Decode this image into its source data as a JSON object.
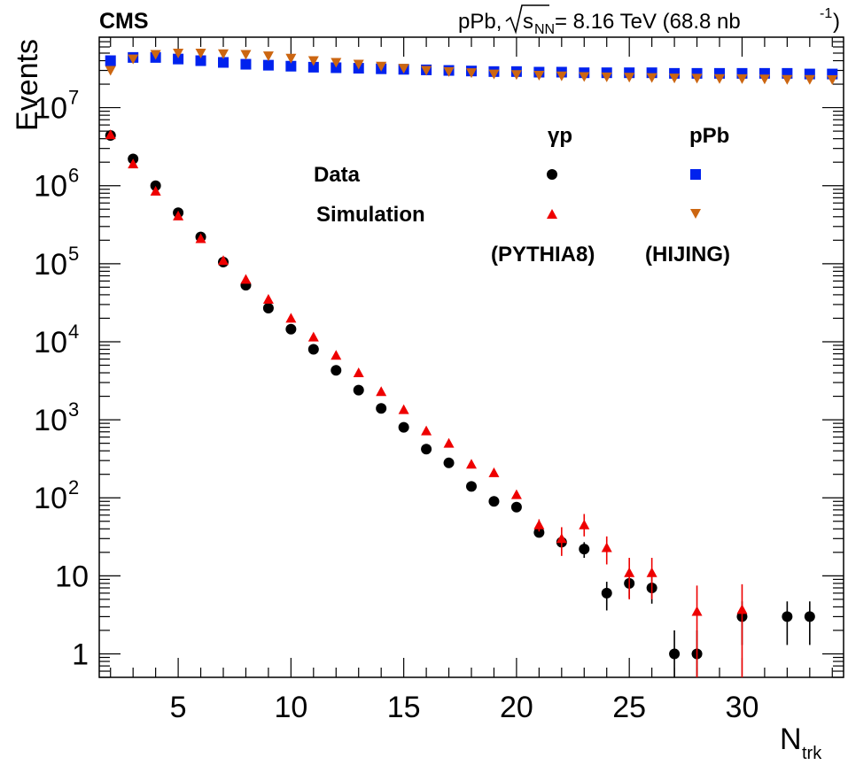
{
  "header": {
    "experiment": "CMS",
    "collision": "pPb,",
    "sqrt_s": "s",
    "sqrt_s_sub": "NN",
    "energy": "= 8.16 TeV (68.8 nb",
    "lumi_exp": "-1",
    "lumi_close": ")"
  },
  "legend": {
    "col_gp": "γp",
    "col_ppb": "pPb",
    "row_data": "Data",
    "row_sim": "Simulation",
    "gen_gp": "(PYTHIA8)",
    "gen_ppb": "(HIJING)"
  },
  "colors": {
    "data_gp": "#000000",
    "sim_gp": "#ee0000",
    "data_ppb": "#0022ee",
    "sim_ppb": "#cc6611"
  },
  "chart_data": {
    "type": "scatter",
    "xlabel": "N",
    "xlabel_sub": "trk",
    "ylabel": "Events",
    "xlim": [
      1.5,
      34.5
    ],
    "ylim": [
      0.5,
      80000000
    ],
    "yscale": "log",
    "x_ticks": [
      5,
      10,
      15,
      20,
      25,
      30
    ],
    "y_ticks": [
      {
        "value": 1,
        "base": "1",
        "exp": ""
      },
      {
        "value": 10,
        "base": "10",
        "exp": ""
      },
      {
        "value": 100,
        "base": "10",
        "exp": "2"
      },
      {
        "value": 1000,
        "base": "10",
        "exp": "3"
      },
      {
        "value": 10000,
        "base": "10",
        "exp": "4"
      },
      {
        "value": 100000,
        "base": "10",
        "exp": "5"
      },
      {
        "value": 1000000,
        "base": "10",
        "exp": "6"
      },
      {
        "value": 10000000,
        "base": "10",
        "exp": "7"
      }
    ],
    "series": [
      {
        "name": "Data γp",
        "marker": "circle",
        "color": "#000000",
        "points": [
          {
            "x": 2,
            "y": 4400000
          },
          {
            "x": 3,
            "y": 2200000
          },
          {
            "x": 4,
            "y": 1000000
          },
          {
            "x": 5,
            "y": 450000
          },
          {
            "x": 6,
            "y": 220000
          },
          {
            "x": 7,
            "y": 105000
          },
          {
            "x": 8,
            "y": 53000
          },
          {
            "x": 9,
            "y": 27000
          },
          {
            "x": 10,
            "y": 14500
          },
          {
            "x": 11,
            "y": 8000
          },
          {
            "x": 12,
            "y": 4300
          },
          {
            "x": 13,
            "y": 2400
          },
          {
            "x": 14,
            "y": 1400
          },
          {
            "x": 15,
            "y": 800
          },
          {
            "x": 16,
            "y": 420
          },
          {
            "x": 17,
            "y": 280
          },
          {
            "x": 18,
            "y": 140
          },
          {
            "x": 19,
            "y": 90
          },
          {
            "x": 20,
            "y": 76
          },
          {
            "x": 21,
            "y": 36
          },
          {
            "x": 22,
            "y": 27
          },
          {
            "x": 23,
            "y": 22,
            "lo": 17,
            "hi": 27
          },
          {
            "x": 24,
            "y": 6,
            "lo": 3.6,
            "hi": 8.4
          },
          {
            "x": 25,
            "y": 8,
            "lo": 5.2,
            "hi": 10.8
          },
          {
            "x": 26,
            "y": 7,
            "lo": 4.4,
            "hi": 9.6
          },
          {
            "x": 27,
            "y": 1,
            "lo": 0.5,
            "hi": 2
          },
          {
            "x": 28,
            "y": 1,
            "lo": 0.5,
            "hi": 2
          },
          {
            "x": 30,
            "y": 3,
            "lo": 1.3,
            "hi": 4.7
          },
          {
            "x": 32,
            "y": 3,
            "lo": 1.3,
            "hi": 4.7
          },
          {
            "x": 33,
            "y": 3,
            "lo": 1.3,
            "hi": 4.7
          }
        ]
      },
      {
        "name": "Simulation γp (PYTHIA8)",
        "marker": "triangle-up",
        "color": "#ee0000",
        "points": [
          {
            "x": 2,
            "y": 4500000
          },
          {
            "x": 3,
            "y": 1900000
          },
          {
            "x": 4,
            "y": 850000
          },
          {
            "x": 5,
            "y": 410000
          },
          {
            "x": 6,
            "y": 210000
          },
          {
            "x": 7,
            "y": 110000
          },
          {
            "x": 8,
            "y": 63000
          },
          {
            "x": 9,
            "y": 35000
          },
          {
            "x": 10,
            "y": 20000
          },
          {
            "x": 11,
            "y": 11500
          },
          {
            "x": 12,
            "y": 6700
          },
          {
            "x": 13,
            "y": 4000
          },
          {
            "x": 14,
            "y": 2300
          },
          {
            "x": 15,
            "y": 1350
          },
          {
            "x": 16,
            "y": 720
          },
          {
            "x": 17,
            "y": 500
          },
          {
            "x": 18,
            "y": 270
          },
          {
            "x": 19,
            "y": 210
          },
          {
            "x": 20,
            "y": 110
          },
          {
            "x": 21,
            "y": 45,
            "lo": 37,
            "hi": 53
          },
          {
            "x": 22,
            "y": 30,
            "lo": 18,
            "hi": 42
          },
          {
            "x": 23,
            "y": 45,
            "lo": 32,
            "hi": 62
          },
          {
            "x": 24,
            "y": 23,
            "lo": 14,
            "hi": 32
          },
          {
            "x": 25,
            "y": 11,
            "lo": 5,
            "hi": 17
          },
          {
            "x": 26,
            "y": 11,
            "lo": 5,
            "hi": 17
          },
          {
            "x": 28,
            "y": 3.5,
            "lo": 0.5,
            "hi": 7.5
          },
          {
            "x": 30,
            "y": 3.7,
            "lo": 0.5,
            "hi": 7.8
          }
        ]
      },
      {
        "name": "Data pPb",
        "marker": "square",
        "color": "#0022ee",
        "points": [
          {
            "x": 2,
            "y": 40000000
          },
          {
            "x": 3,
            "y": 44000000
          },
          {
            "x": 4,
            "y": 44000000
          },
          {
            "x": 5,
            "y": 42000000
          },
          {
            "x": 6,
            "y": 40000000
          },
          {
            "x": 7,
            "y": 38000000
          },
          {
            "x": 8,
            "y": 36000000
          },
          {
            "x": 9,
            "y": 35000000
          },
          {
            "x": 10,
            "y": 34000000
          },
          {
            "x": 11,
            "y": 33000000
          },
          {
            "x": 12,
            "y": 32500000
          },
          {
            "x": 13,
            "y": 32000000
          },
          {
            "x": 14,
            "y": 31500000
          },
          {
            "x": 15,
            "y": 31000000
          },
          {
            "x": 16,
            "y": 30500000
          },
          {
            "x": 17,
            "y": 30000000
          },
          {
            "x": 18,
            "y": 29500000
          },
          {
            "x": 19,
            "y": 29000000
          },
          {
            "x": 20,
            "y": 29000000
          },
          {
            "x": 21,
            "y": 28500000
          },
          {
            "x": 22,
            "y": 28500000
          },
          {
            "x": 23,
            "y": 28000000
          },
          {
            "x": 24,
            "y": 28000000
          },
          {
            "x": 25,
            "y": 28000000
          },
          {
            "x": 26,
            "y": 28000000
          },
          {
            "x": 27,
            "y": 27500000
          },
          {
            "x": 28,
            "y": 27500000
          },
          {
            "x": 29,
            "y": 27500000
          },
          {
            "x": 30,
            "y": 27500000
          },
          {
            "x": 31,
            "y": 27500000
          },
          {
            "x": 32,
            "y": 27500000
          },
          {
            "x": 33,
            "y": 27000000
          },
          {
            "x": 34,
            "y": 27000000
          }
        ]
      },
      {
        "name": "Simulation pPb (HIJING)",
        "marker": "triangle-down",
        "color": "#cc6611",
        "points": [
          {
            "x": 2,
            "y": 30000000
          },
          {
            "x": 3,
            "y": 42000000
          },
          {
            "x": 4,
            "y": 48000000
          },
          {
            "x": 5,
            "y": 50000000
          },
          {
            "x": 6,
            "y": 50000000
          },
          {
            "x": 7,
            "y": 49000000
          },
          {
            "x": 8,
            "y": 48000000
          },
          {
            "x": 9,
            "y": 46000000
          },
          {
            "x": 10,
            "y": 43000000
          },
          {
            "x": 11,
            "y": 40000000
          },
          {
            "x": 12,
            "y": 38000000
          },
          {
            "x": 13,
            "y": 36000000
          },
          {
            "x": 14,
            "y": 34000000
          },
          {
            "x": 15,
            "y": 32000000
          },
          {
            "x": 16,
            "y": 30000000
          },
          {
            "x": 17,
            "y": 29000000
          },
          {
            "x": 18,
            "y": 28000000
          },
          {
            "x": 19,
            "y": 27000000
          },
          {
            "x": 20,
            "y": 26500000
          },
          {
            "x": 21,
            "y": 26000000
          },
          {
            "x": 22,
            "y": 25500000
          },
          {
            "x": 23,
            "y": 25000000
          },
          {
            "x": 24,
            "y": 24800000
          },
          {
            "x": 25,
            "y": 24500000
          },
          {
            "x": 26,
            "y": 24300000
          },
          {
            "x": 27,
            "y": 24000000
          },
          {
            "x": 28,
            "y": 23800000
          },
          {
            "x": 29,
            "y": 23600000
          },
          {
            "x": 30,
            "y": 23500000
          },
          {
            "x": 31,
            "y": 23300000
          },
          {
            "x": 32,
            "y": 23000000
          },
          {
            "x": 33,
            "y": 23000000
          },
          {
            "x": 34,
            "y": 22800000
          }
        ]
      }
    ]
  }
}
